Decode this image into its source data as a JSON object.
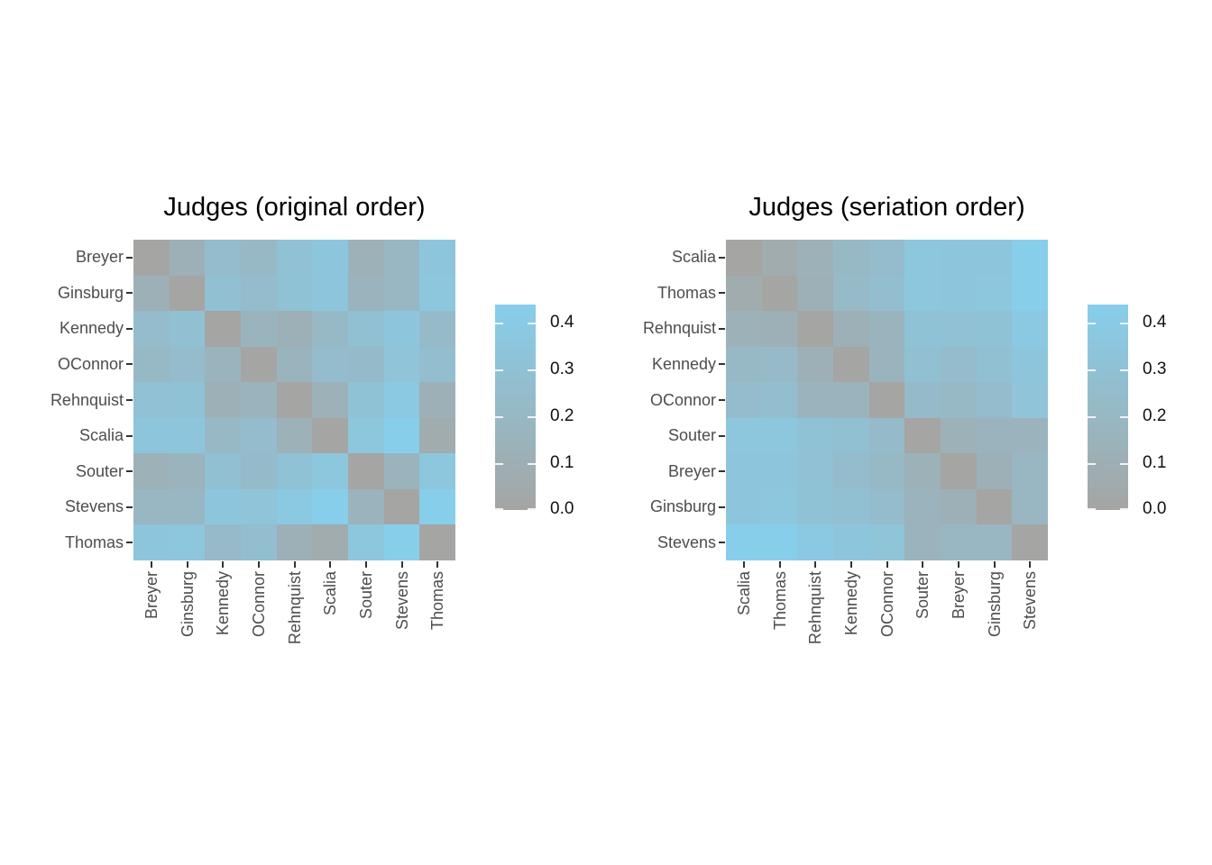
{
  "chart_data": {
    "type": "heatmap",
    "description": "Two dissimilarity heatmaps of 9 US Supreme Court judges (proportion of disagreement), shown in original alphabetical order and in seriation order, each with a gray-to-skyblue color legend from 0.0 to 0.4.",
    "labels_original_order": [
      "Breyer",
      "Ginsburg",
      "Kennedy",
      "OConnor",
      "Rehnquist",
      "Scalia",
      "Souter",
      "Stevens",
      "Thomas"
    ],
    "matrix_original_order": [
      [
        0.0,
        0.12,
        0.25,
        0.21,
        0.3,
        0.35,
        0.13,
        0.19,
        0.35
      ],
      [
        0.12,
        0.0,
        0.29,
        0.25,
        0.31,
        0.35,
        0.15,
        0.19,
        0.36
      ],
      [
        0.25,
        0.29,
        0.0,
        0.16,
        0.12,
        0.21,
        0.29,
        0.35,
        0.22
      ],
      [
        0.21,
        0.25,
        0.16,
        0.0,
        0.16,
        0.25,
        0.23,
        0.33,
        0.27
      ],
      [
        0.3,
        0.31,
        0.12,
        0.16,
        0.0,
        0.13,
        0.31,
        0.38,
        0.12
      ],
      [
        0.35,
        0.35,
        0.21,
        0.25,
        0.13,
        0.0,
        0.36,
        0.45,
        0.07
      ],
      [
        0.13,
        0.15,
        0.29,
        0.23,
        0.31,
        0.36,
        0.0,
        0.15,
        0.36
      ],
      [
        0.19,
        0.19,
        0.35,
        0.33,
        0.38,
        0.45,
        0.15,
        0.0,
        0.45
      ],
      [
        0.35,
        0.36,
        0.22,
        0.27,
        0.12,
        0.07,
        0.36,
        0.45,
        0.0
      ]
    ],
    "panels": [
      {
        "title": "Judges (original order)",
        "row_col_order": [
          "Breyer",
          "Ginsburg",
          "Kennedy",
          "OConnor",
          "Rehnquist",
          "Scalia",
          "Souter",
          "Stevens",
          "Thomas"
        ]
      },
      {
        "title": "Judges (seriation order)",
        "row_col_order": [
          "Scalia",
          "Thomas",
          "Rehnquist",
          "Kennedy",
          "OConnor",
          "Souter",
          "Breyer",
          "Ginsburg",
          "Stevens"
        ]
      }
    ],
    "color_scale": {
      "low_color": "#a5a5a3",
      "high_color": "#87ceeb",
      "domain": [
        0,
        0.44
      ],
      "tick_labels": [
        "0.4",
        "0.3",
        "0.2",
        "0.1",
        "0.0"
      ],
      "tick_values": [
        0.4,
        0.3,
        0.2,
        0.1,
        0.0
      ]
    },
    "layout_hints": {
      "grid": "off",
      "legend_position": "right of each panel",
      "x_tick_rotation_degrees": 90
    }
  }
}
